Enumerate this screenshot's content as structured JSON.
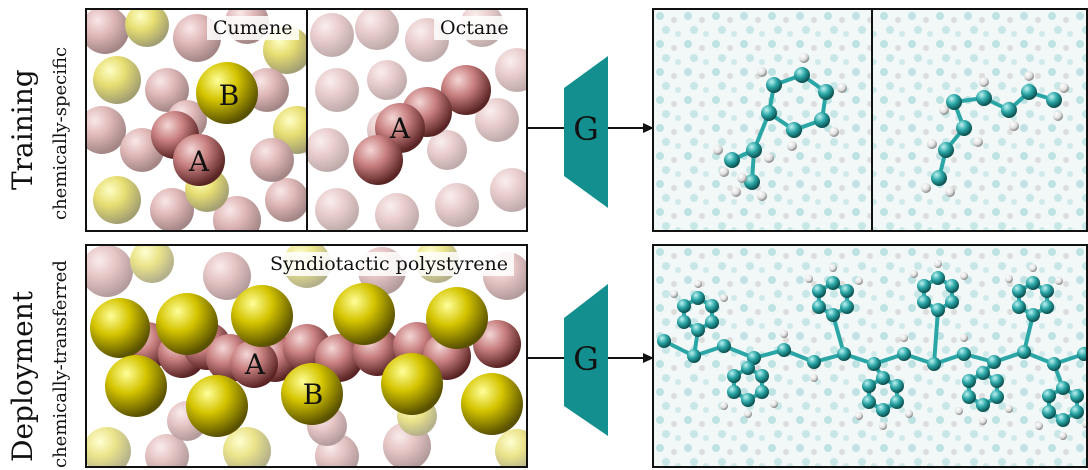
{
  "rows": {
    "training": {
      "title": "Training",
      "subtitle": "chemically-specific"
    },
    "deployment": {
      "title": "Deployment",
      "subtitle": "chemically-transferred"
    }
  },
  "panels": {
    "cumene": "Cumene",
    "octane": "Octane",
    "polystyrene": "Syndiotactic polystyrene"
  },
  "beads": {
    "a": "A",
    "b": "B"
  },
  "generator": "G",
  "colors": {
    "bead_a": "#c98080",
    "bead_b": "#d4c400",
    "generator": "#148f8f",
    "carbon": "#2aa6a6",
    "hydrogen": "#e8e8e8"
  }
}
